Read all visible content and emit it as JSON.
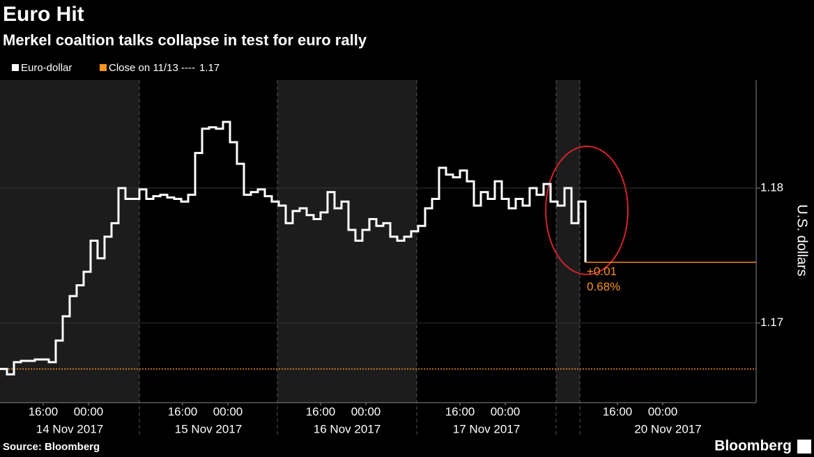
{
  "chart_data": {
    "type": "line",
    "title": "Euro Hit",
    "subtitle": "Merkel coaltion talks collapse in test for euro rally",
    "y_label": "U.S. dollars",
    "source": "Source: Bloomberg",
    "brand": "Bloomberg",
    "days": [
      {
        "label": "14 Nov 2017",
        "ticks": [
          "16:00",
          "00:00"
        ]
      },
      {
        "label": "15 Nov 2017",
        "ticks": [
          "16:00",
          "00:00"
        ]
      },
      {
        "label": "16 Nov 2017",
        "ticks": [
          "16:00",
          "00:00"
        ]
      },
      {
        "label": "17 Nov 2017",
        "ticks": [
          "16:00",
          "00:00"
        ]
      },
      {
        "label": "20 Nov 2017",
        "ticks": [
          "16:00",
          "00:00"
        ]
      }
    ],
    "series": [
      {
        "name": "Euro-dollar",
        "color": "#ffffff",
        "values": [
          1.1666,
          1.1662,
          1.1671,
          1.1672,
          1.1672,
          1.1673,
          1.1673,
          1.1671,
          1.1687,
          1.1705,
          1.172,
          1.1728,
          1.1738,
          1.1761,
          1.1748,
          1.1764,
          1.1774,
          1.18,
          1.1792,
          1.1792,
          1.1799,
          1.1792,
          1.1794,
          1.1795,
          1.1793,
          1.1792,
          1.179,
          1.1795,
          1.1826,
          1.1844,
          1.1845,
          1.1844,
          1.1849,
          1.1834,
          1.1818,
          1.1795,
          1.1797,
          1.1799,
          1.1794,
          1.179,
          1.1787,
          1.1774,
          1.1783,
          1.1785,
          1.178,
          1.1777,
          1.1782,
          1.1797,
          1.1785,
          1.179,
          1.1769,
          1.1761,
          1.1769,
          1.1777,
          1.1772,
          1.1774,
          1.1764,
          1.1761,
          1.1764,
          1.1768,
          1.1772,
          1.1785,
          1.1792,
          1.1815,
          1.181,
          1.1808,
          1.1813,
          1.1805,
          1.1787,
          1.1797,
          1.1792,
          1.1805,
          1.1792,
          1.1785,
          1.1792,
          1.1787,
          1.18,
          1.1795,
          1.1803,
          1.179,
          1.1787,
          1.18,
          1.1774,
          1.179,
          1.1745
        ]
      }
    ],
    "reference_line": {
      "name": "Close on 11/13 ----",
      "value": 1.1666,
      "label": "1.17",
      "color": "#f7931e"
    },
    "annotations": [
      {
        "text": "+0.01"
      },
      {
        "text": "0.68%"
      }
    ],
    "ylim": [
      1.1641,
      1.188
    ],
    "yticks": [
      1.17,
      1.18
    ]
  }
}
